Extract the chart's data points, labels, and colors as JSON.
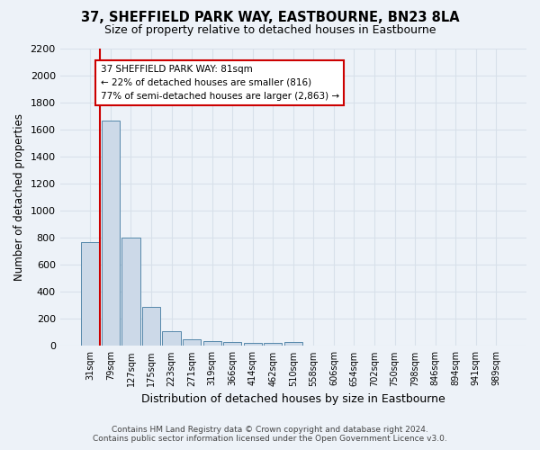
{
  "title": "37, SHEFFIELD PARK WAY, EASTBOURNE, BN23 8LA",
  "subtitle": "Size of property relative to detached houses in Eastbourne",
  "xlabel": "Distribution of detached houses by size in Eastbourne",
  "ylabel": "Number of detached properties",
  "bin_labels": [
    "31sqm",
    "79sqm",
    "127sqm",
    "175sqm",
    "223sqm",
    "271sqm",
    "319sqm",
    "366sqm",
    "414sqm",
    "462sqm",
    "510sqm",
    "558sqm",
    "606sqm",
    "654sqm",
    "702sqm",
    "750sqm",
    "798sqm",
    "846sqm",
    "894sqm",
    "941sqm",
    "989sqm"
  ],
  "bar_values": [
    770,
    1670,
    800,
    290,
    110,
    50,
    38,
    28,
    20,
    20,
    28,
    0,
    0,
    0,
    0,
    0,
    0,
    0,
    0,
    0,
    0
  ],
  "bar_color": "#ccd9e8",
  "bar_edge_color": "#5588aa",
  "ylim_max": 2200,
  "yticks": [
    0,
    200,
    400,
    600,
    800,
    1000,
    1200,
    1400,
    1600,
    1800,
    2000,
    2200
  ],
  "property_line_color": "#cc0000",
  "annotation_text": "37 SHEFFIELD PARK WAY: 81sqm\n← 22% of detached houses are smaller (816)\n77% of semi-detached houses are larger (2,863) →",
  "annotation_box_edgecolor": "#cc0000",
  "footer_line1": "Contains HM Land Registry data © Crown copyright and database right 2024.",
  "footer_line2": "Contains public sector information licensed under the Open Government Licence v3.0.",
  "background_color": "#edf2f8",
  "grid_color": "#d8e0ea"
}
